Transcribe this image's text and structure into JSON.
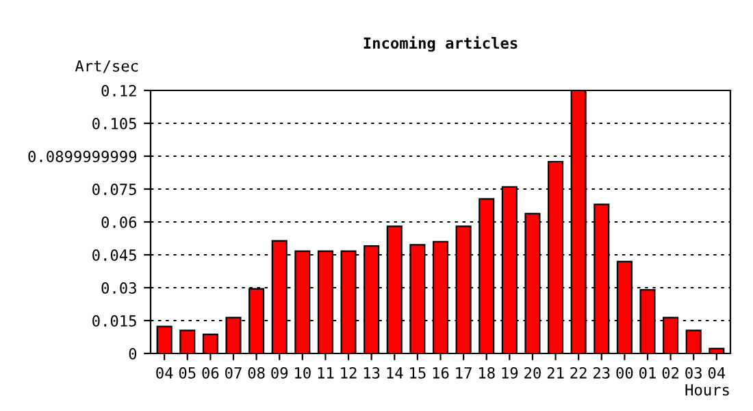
{
  "chart_data": {
    "type": "bar",
    "title": "Incoming articles",
    "ylabel": "Art/sec",
    "xlabel": "Hours",
    "categories": [
      "04",
      "05",
      "06",
      "07",
      "08",
      "09",
      "10",
      "11",
      "12",
      "13",
      "14",
      "15",
      "16",
      "17",
      "18",
      "19",
      "20",
      "21",
      "22",
      "23",
      "00",
      "01",
      "02",
      "03",
      "04"
    ],
    "series": [
      {
        "color": "#ff0000",
        "values": [
          0.0123,
          0.0105,
          0.0087,
          0.0164,
          0.0295,
          0.0514,
          0.0467,
          0.0467,
          0.0467,
          0.049,
          0.058,
          0.0496,
          0.051,
          0.058,
          0.0705,
          0.076,
          0.0638,
          0.0875,
          0.12,
          0.068,
          0.0419,
          0.029,
          0.0164,
          0.0105,
          0.0022
        ]
      }
    ],
    "ylim": [
      0,
      0.12
    ],
    "yticks": [
      0,
      0.015,
      0.03,
      0.045,
      0.06,
      0.075,
      0.0899999999,
      0.105,
      0.12
    ],
    "grid": "y",
    "legend": false
  }
}
